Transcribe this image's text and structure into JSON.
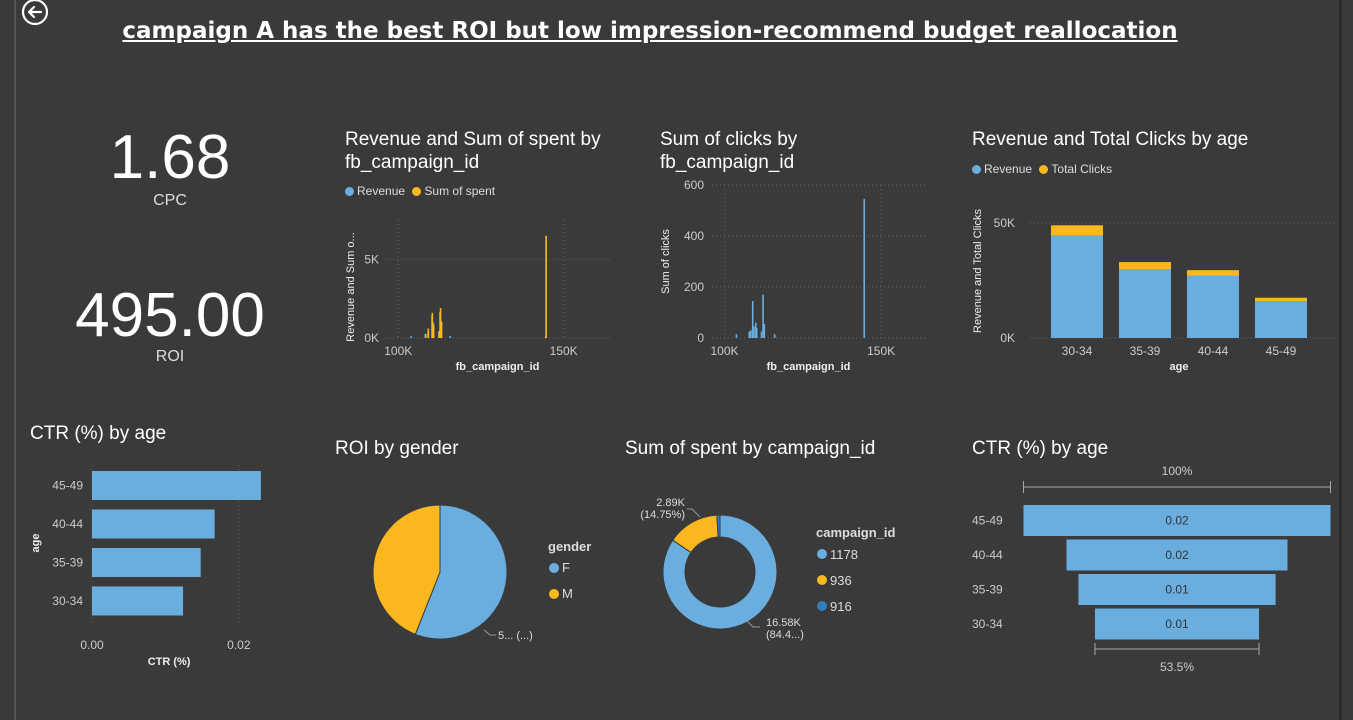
{
  "page": {
    "title": "campaign A has the best ROI but low impression-recommend budget reallocation",
    "colors": {
      "background": "#3a3a3a",
      "blue": "#6aaee0",
      "yellow": "#fbb81e",
      "darkblue": "#2f7fc1",
      "text": "#ffffff"
    }
  },
  "kpis": {
    "cpc": {
      "value": "1.68",
      "label": "CPC"
    },
    "roi": {
      "value": "495.00",
      "label": "ROI"
    }
  },
  "chart_data": [
    {
      "id": "revenue_spent_by_campaign",
      "type": "bar",
      "title": "Revenue and Sum of spent by fb_campaign_id",
      "xlabel": "fb_campaign_id",
      "ylabel": "Revenue and Sum o...",
      "xlim": [
        96000,
        164000
      ],
      "ylim": [
        0,
        7500
      ],
      "xticks": [
        "100K",
        "150K"
      ],
      "yticks": [
        "0K",
        "5K"
      ],
      "series": [
        {
          "name": "Revenue",
          "color": "#6aaee0",
          "x": [
            103900,
            108200,
            109000,
            110200,
            110600,
            112300,
            112600,
            113000,
            115700,
            144500
          ],
          "values": [
            120,
            260,
            360,
            1400,
            1000,
            450,
            1650,
            950,
            140,
            100
          ]
        },
        {
          "name": "Sum of spent",
          "color": "#fbb81e",
          "x": [
            108300,
            109100,
            110300,
            110700,
            112400,
            112800,
            113100,
            144700
          ],
          "values": [
            260,
            600,
            1600,
            850,
            400,
            1900,
            1050,
            6500
          ]
        }
      ],
      "legend": "top-left",
      "grid": true
    },
    {
      "id": "clicks_by_campaign",
      "type": "bar",
      "title": "Sum of clicks by fb_campaign_id",
      "xlabel": "fb_campaign_id",
      "ylabel": "Sum of clicks",
      "xlim": [
        96000,
        164000
      ],
      "ylim": [
        0,
        600
      ],
      "xticks": [
        "100K",
        "150K"
      ],
      "yticks": [
        "0",
        "200",
        "400",
        "600"
      ],
      "series": [
        {
          "name": "Sum of clicks",
          "color": "#6aaee0",
          "x": [
            103800,
            107900,
            108400,
            109000,
            109400,
            110000,
            110300,
            111800,
            112300,
            112700,
            116000,
            144600
          ],
          "values": [
            15,
            25,
            30,
            145,
            45,
            60,
            40,
            25,
            170,
            55,
            15,
            545
          ]
        }
      ],
      "grid": true
    },
    {
      "id": "revenue_clicks_by_age",
      "type": "bar",
      "stacked": true,
      "title": "Revenue and Total Clicks by age",
      "xlabel": "age",
      "ylabel": "Revenue and Total Clicks",
      "ylim": [
        0,
        60000
      ],
      "yticks": [
        "0K",
        "50K"
      ],
      "categories": [
        "30-34",
        "35-39",
        "40-44",
        "45-49"
      ],
      "series": [
        {
          "name": "Revenue",
          "color": "#6aaee0",
          "values": [
            44500,
            30000,
            27000,
            16000
          ]
        },
        {
          "name": "Total Clicks",
          "color": "#fbb81e",
          "values": [
            4500,
            3000,
            2500,
            1500
          ]
        }
      ],
      "legend": "top-left",
      "grid": true
    },
    {
      "id": "ctr_by_age_bar",
      "type": "bar",
      "orientation": "horizontal",
      "title": "CTR (%) by age",
      "xlabel": "CTR (%)",
      "ylabel": "age",
      "xlim": [
        0,
        0.025
      ],
      "xticks": [
        "0.00",
        "0.02"
      ],
      "categories": [
        "45-49",
        "40-44",
        "35-39",
        "30-34"
      ],
      "values": [
        0.023,
        0.0167,
        0.0148,
        0.0124
      ],
      "color": "#6aaee0",
      "grid": true
    },
    {
      "id": "roi_by_gender",
      "type": "pie",
      "title": "ROI by gender",
      "legend_title": "gender",
      "categories": [
        "F",
        "M"
      ],
      "values": [
        56,
        44
      ],
      "colors": [
        "#6aaee0",
        "#fbb81e"
      ],
      "data_labels": [
        "5... (...)"
      ],
      "legend": "right"
    },
    {
      "id": "spent_by_campaign",
      "type": "pie",
      "donut": true,
      "title": "Sum of spent by campaign_id",
      "legend_title": "campaign_id",
      "categories": [
        "1178",
        "936",
        "916"
      ],
      "values": [
        16580,
        2890,
        170
      ],
      "colors": [
        "#6aaee0",
        "#fbb81e",
        "#2f7fc1"
      ],
      "data_labels": [
        {
          "value": "16.58K",
          "pct": "(84.4...)"
        },
        {
          "value": "2.89K",
          "pct": "(14.75%)"
        }
      ],
      "legend": "right"
    },
    {
      "id": "ctr_by_age_funnel",
      "type": "bar",
      "subtype": "funnel",
      "title": "CTR (%) by age",
      "categories": [
        "45-49",
        "40-44",
        "35-39",
        "30-34"
      ],
      "values": [
        0.0232,
        0.0167,
        0.0149,
        0.0124
      ],
      "value_labels": [
        "0.02",
        "0.02",
        "0.01",
        "0.01"
      ],
      "top_pct": "100%",
      "bottom_pct": "53.5%",
      "color": "#6aaee0"
    }
  ]
}
